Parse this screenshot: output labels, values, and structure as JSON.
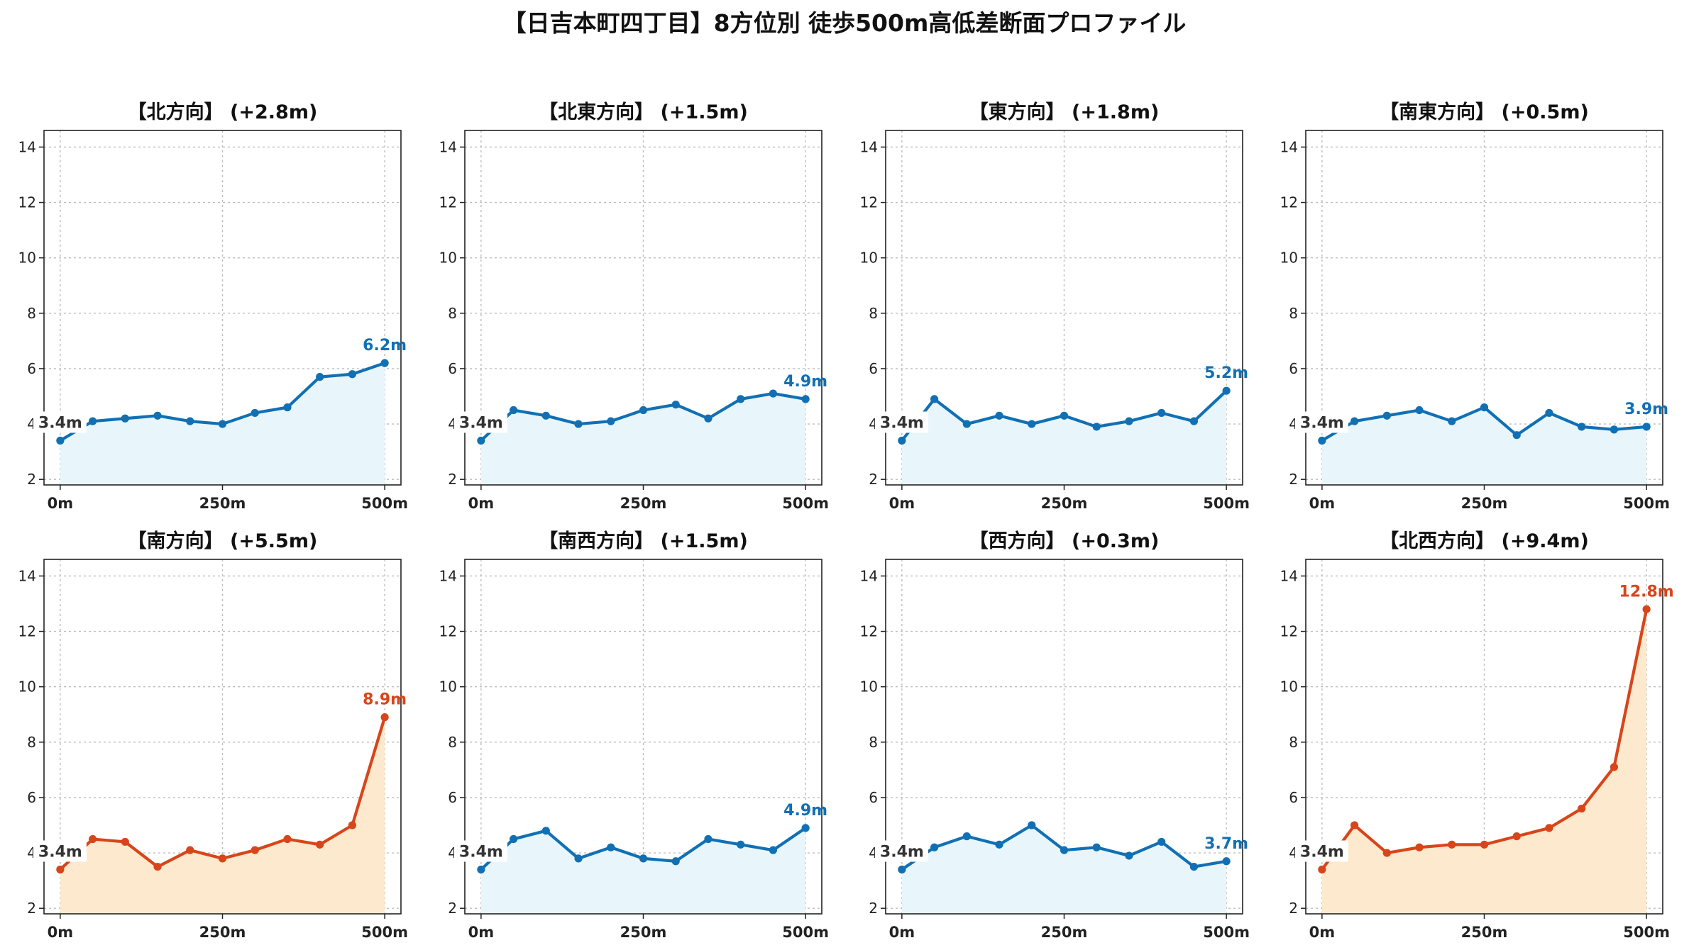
{
  "figure": {
    "title": "【日吉本町四丁目】8方位別 徒歩500m高低差断面プロファイル",
    "colors": {
      "normal_line": "#1170B4",
      "normal_fill": "#E8F6FC",
      "steep_line": "#D8451A",
      "steep_fill": "#FDEACE"
    }
  },
  "chart_data": [
    {
      "type": "area",
      "title": "【北方向】 (+2.8m)",
      "style": "normal",
      "x": [
        0,
        50,
        100,
        150,
        200,
        250,
        300,
        350,
        400,
        450,
        500
      ],
      "values": [
        3.4,
        4.1,
        4.2,
        4.3,
        4.1,
        4.0,
        4.4,
        4.6,
        5.7,
        5.8,
        6.2
      ],
      "start_label": "3.4m",
      "end_label": "6.2m",
      "xticks": [
        "0m",
        "250m",
        "500m"
      ],
      "yticks": [
        "2",
        "4",
        "6",
        "8",
        "10",
        "12",
        "14"
      ],
      "xlim": [
        -25,
        525
      ],
      "ylim": [
        1.8,
        14.6
      ],
      "grid": true
    },
    {
      "type": "area",
      "title": "【北東方向】 (+1.5m)",
      "style": "normal",
      "x": [
        0,
        50,
        100,
        150,
        200,
        250,
        300,
        350,
        400,
        450,
        500
      ],
      "values": [
        3.4,
        4.5,
        4.3,
        4.0,
        4.1,
        4.5,
        4.7,
        4.2,
        4.9,
        5.1,
        4.9
      ],
      "start_label": "3.4m",
      "end_label": "4.9m",
      "xticks": [
        "0m",
        "250m",
        "500m"
      ],
      "yticks": [
        "2",
        "4",
        "6",
        "8",
        "10",
        "12",
        "14"
      ],
      "xlim": [
        -25,
        525
      ],
      "ylim": [
        1.8,
        14.6
      ],
      "grid": true
    },
    {
      "type": "area",
      "title": "【東方向】 (+1.8m)",
      "style": "normal",
      "x": [
        0,
        50,
        100,
        150,
        200,
        250,
        300,
        350,
        400,
        450,
        500
      ],
      "values": [
        3.4,
        4.9,
        4.0,
        4.3,
        4.0,
        4.3,
        3.9,
        4.1,
        4.4,
        4.1,
        5.2
      ],
      "start_label": "3.4m",
      "end_label": "5.2m",
      "xticks": [
        "0m",
        "250m",
        "500m"
      ],
      "yticks": [
        "2",
        "4",
        "6",
        "8",
        "10",
        "12",
        "14"
      ],
      "xlim": [
        -25,
        525
      ],
      "ylim": [
        1.8,
        14.6
      ],
      "grid": true
    },
    {
      "type": "area",
      "title": "【南東方向】 (+0.5m)",
      "style": "normal",
      "x": [
        0,
        50,
        100,
        150,
        200,
        250,
        300,
        350,
        400,
        450,
        500
      ],
      "values": [
        3.4,
        4.1,
        4.3,
        4.5,
        4.1,
        4.6,
        3.6,
        4.4,
        3.9,
        3.8,
        3.9
      ],
      "start_label": "3.4m",
      "end_label": "3.9m",
      "xticks": [
        "0m",
        "250m",
        "500m"
      ],
      "yticks": [
        "2",
        "4",
        "6",
        "8",
        "10",
        "12",
        "14"
      ],
      "xlim": [
        -25,
        525
      ],
      "ylim": [
        1.8,
        14.6
      ],
      "grid": true
    },
    {
      "type": "area",
      "title": "【南方向】 (+5.5m)",
      "style": "steep",
      "x": [
        0,
        50,
        100,
        150,
        200,
        250,
        300,
        350,
        400,
        450,
        500
      ],
      "values": [
        3.4,
        4.5,
        4.4,
        3.5,
        4.1,
        3.8,
        4.1,
        4.5,
        4.3,
        5.0,
        8.9
      ],
      "start_label": "3.4m",
      "end_label": "8.9m",
      "xticks": [
        "0m",
        "250m",
        "500m"
      ],
      "yticks": [
        "2",
        "4",
        "6",
        "8",
        "10",
        "12",
        "14"
      ],
      "xlim": [
        -25,
        525
      ],
      "ylim": [
        1.8,
        14.6
      ],
      "grid": true
    },
    {
      "type": "area",
      "title": "【南西方向】 (+1.5m)",
      "style": "normal",
      "x": [
        0,
        50,
        100,
        150,
        200,
        250,
        300,
        350,
        400,
        450,
        500
      ],
      "values": [
        3.4,
        4.5,
        4.8,
        3.8,
        4.2,
        3.8,
        3.7,
        4.5,
        4.3,
        4.1,
        4.9
      ],
      "start_label": "3.4m",
      "end_label": "4.9m",
      "xticks": [
        "0m",
        "250m",
        "500m"
      ],
      "yticks": [
        "2",
        "4",
        "6",
        "8",
        "10",
        "12",
        "14"
      ],
      "xlim": [
        -25,
        525
      ],
      "ylim": [
        1.8,
        14.6
      ],
      "grid": true
    },
    {
      "type": "area",
      "title": "【西方向】 (+0.3m)",
      "style": "normal",
      "x": [
        0,
        50,
        100,
        150,
        200,
        250,
        300,
        350,
        400,
        450,
        500
      ],
      "values": [
        3.4,
        4.2,
        4.6,
        4.3,
        5.0,
        4.1,
        4.2,
        3.9,
        4.4,
        3.5,
        3.7
      ],
      "start_label": "3.4m",
      "end_label": "3.7m",
      "xticks": [
        "0m",
        "250m",
        "500m"
      ],
      "yticks": [
        "2",
        "4",
        "6",
        "8",
        "10",
        "12",
        "14"
      ],
      "xlim": [
        -25,
        525
      ],
      "ylim": [
        1.8,
        14.6
      ],
      "grid": true
    },
    {
      "type": "area",
      "title": "【北西方向】 (+9.4m)",
      "style": "steep",
      "x": [
        0,
        50,
        100,
        150,
        200,
        250,
        300,
        350,
        400,
        450,
        500
      ],
      "values": [
        3.4,
        5.0,
        4.0,
        4.2,
        4.3,
        4.3,
        4.6,
        4.9,
        5.6,
        7.1,
        12.8
      ],
      "start_label": "3.4m",
      "end_label": "12.8m",
      "xticks": [
        "0m",
        "250m",
        "500m"
      ],
      "yticks": [
        "2",
        "4",
        "6",
        "8",
        "10",
        "12",
        "14"
      ],
      "xlim": [
        -25,
        525
      ],
      "ylim": [
        1.8,
        14.6
      ],
      "grid": true
    }
  ]
}
